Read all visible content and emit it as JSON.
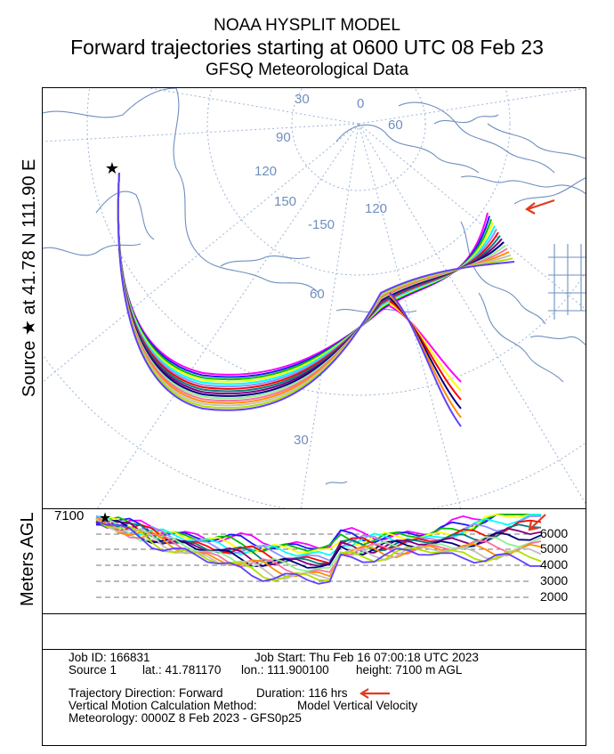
{
  "header": {
    "line1": "NOAA HYSPLIT MODEL",
    "line2": "Forward trajectories starting at 0600 UTC 08 Feb 23",
    "line3": "GFSQ Meteorological Data"
  },
  "map": {
    "source_label": "Source ★ at 41.78 N 111.90 E",
    "grid_labels": [
      "30",
      "0",
      "60",
      "90",
      "120",
      "-150",
      "150",
      "120",
      "60",
      "30"
    ],
    "trajectory_colors": [
      "#ff00ff",
      "#1a1aff",
      "#00c000",
      "#ffff00",
      "#00ffff",
      "#9090ff",
      "#ff0000",
      "#008080",
      "#800080",
      "#000080",
      "#90ee90",
      "#ff6ea0",
      "#ff8c00",
      "#c0c0c0",
      "#b0e000",
      "#6040ff"
    ],
    "map_line_color": "#6e8fbf",
    "annotation_arrow_color": "#e03a1e"
  },
  "profile": {
    "ylabel": "Meters AGL",
    "start_height": "7100",
    "levels": [
      "6000",
      "5000",
      "4000",
      "3000",
      "2000"
    ]
  },
  "info": {
    "job_id": "Job ID: 166831",
    "job_start": "Job Start: Thu Feb 16 07:00:18 UTC 2023",
    "source": "Source 1",
    "lat": "lat.: 41.781170",
    "lon": "lon.: 111.900100",
    "height": "height: 7100 m AGL",
    "direction": "Trajectory Direction: Forward",
    "duration": "Duration: 116 hrs",
    "vertical_method_label": "Vertical Motion Calculation Method:",
    "vertical_method_value": "Model Vertical Velocity",
    "meteorology": "Meteorology: 0000Z  8 Feb 2023 - GFS0p25"
  }
}
